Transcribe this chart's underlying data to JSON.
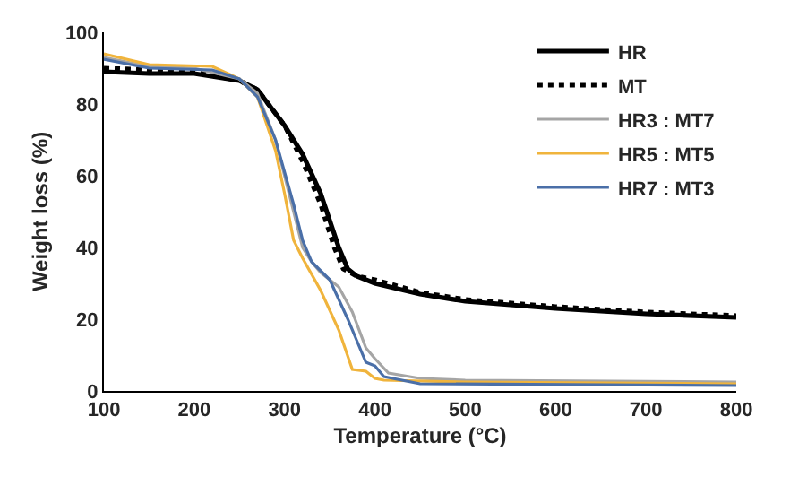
{
  "chart_data": {
    "type": "line",
    "xlabel": "Temperature (°C)",
    "ylabel": "Weight loss (%)",
    "xlim": [
      100,
      800
    ],
    "xticks": [
      100,
      200,
      300,
      400,
      500,
      600,
      700,
      800
    ],
    "ylim": [
      0,
      100
    ],
    "yticks": [
      0,
      20,
      40,
      60,
      80,
      100
    ],
    "grid": false,
    "legend": "top right",
    "marker": "none",
    "series": [
      {
        "name": "HR",
        "color": "#000000",
        "line_style": "solid",
        "x": [
          100,
          150,
          200,
          250,
          270,
          300,
          320,
          340,
          360,
          370,
          380,
          400,
          450,
          500,
          600,
          700,
          800
        ],
        "values": [
          89,
          88.5,
          88.5,
          86.5,
          84,
          74,
          66,
          55,
          40,
          34,
          32,
          30,
          27,
          25,
          23,
          21.5,
          20.5
        ]
      },
      {
        "name": "MT",
        "color": "#000000",
        "line_style": "dotted",
        "x": [
          100,
          200,
          250,
          270,
          300,
          320,
          340,
          355,
          365,
          380,
          400,
          450,
          500,
          600,
          700,
          800
        ],
        "values": [
          90,
          89,
          86.5,
          84,
          74,
          64,
          52,
          40,
          34,
          32,
          31,
          27.5,
          25.5,
          23.5,
          22,
          21
        ]
      },
      {
        "name": "HR3 : MT7",
        "color": "#a5a5a5",
        "line_style": "solid",
        "x": [
          100,
          150,
          200,
          250,
          270,
          290,
          310,
          320,
          330,
          340,
          360,
          375,
          390,
          400,
          415,
          450,
          500,
          800
        ],
        "values": [
          93,
          90.5,
          90,
          87,
          83,
          70,
          50,
          40,
          36,
          33,
          29,
          22,
          12,
          9,
          5,
          3.5,
          3,
          2.5
        ]
      },
      {
        "name": "HR5 : MT5",
        "color": "#f0b43c",
        "line_style": "solid",
        "x": [
          100,
          150,
          220,
          250,
          270,
          290,
          300,
          310,
          320,
          340,
          360,
          375,
          390,
          400,
          410,
          500,
          800
        ],
        "values": [
          94,
          91,
          90.5,
          87,
          82,
          67,
          55,
          42,
          37,
          28,
          17,
          6,
          5.5,
          3.5,
          3,
          2.5,
          2
        ]
      },
      {
        "name": "HR7 : MT3",
        "color": "#4a6fa8",
        "line_style": "solid",
        "x": [
          100,
          150,
          220,
          250,
          270,
          290,
          310,
          320,
          330,
          350,
          370,
          380,
          390,
          400,
          410,
          450,
          800
        ],
        "values": [
          92.5,
          90,
          89.5,
          87,
          82,
          70,
          52,
          42,
          36,
          31,
          20,
          14,
          8,
          7,
          4,
          2,
          1.5
        ]
      }
    ]
  }
}
